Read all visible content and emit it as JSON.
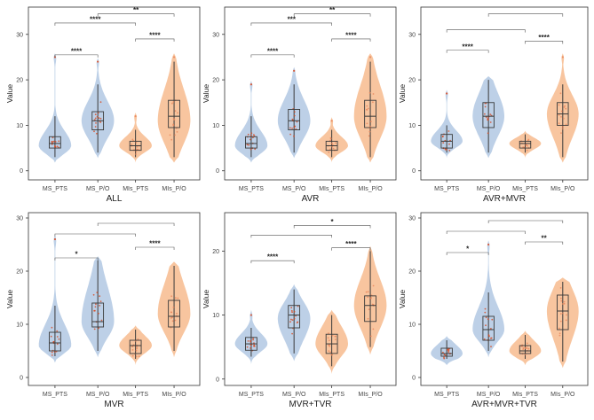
{
  "colors": {
    "blue_violin": "#b9cde6",
    "orange_violin": "#f8c29a",
    "box_stroke": "#3a3a3a",
    "median": "#3a3a3a",
    "red_dots": "#d9481e",
    "orange_dots": "#e8855a",
    "frame": "#333333"
  },
  "chart_data": [
    {
      "type": "violin",
      "title": "ALL",
      "ylabel": "Value",
      "ylim": [
        -2,
        36
      ],
      "yticks": [
        0,
        10,
        20,
        30
      ],
      "categories": [
        "MS_PTS",
        "MS_P/O",
        "MIs_PTS",
        "MIs_P/O"
      ],
      "series": [
        {
          "name": "MS_PTS",
          "min": 3,
          "q1": 5,
          "median": 6,
          "q3": 7.5,
          "max": 12,
          "outlier_max": 25,
          "peak": 5.5
        },
        {
          "name": "MS_P/O",
          "min": 4,
          "q1": 9,
          "median": 11,
          "q3": 13,
          "max": 19,
          "outlier_max": 24,
          "peak": 11
        },
        {
          "name": "MIs_PTS",
          "min": 3,
          "q1": 4.5,
          "median": 5.5,
          "q3": 6.5,
          "max": 9,
          "outlier_max": 12,
          "peak": 5.5
        },
        {
          "name": "MIs_P/O",
          "min": 3,
          "q1": 9.5,
          "median": 12,
          "q3": 15.5,
          "max": 24,
          "outlier_max": 25,
          "peak": 11
        }
      ],
      "significance": [
        {
          "from": 0,
          "to": 1,
          "y": 25.5,
          "label": "****"
        },
        {
          "from": 2,
          "to": 3,
          "y": 29,
          "label": "****"
        },
        {
          "from": 0,
          "to": 2,
          "y": 32.5,
          "label": "****"
        },
        {
          "from": 1,
          "to": 3,
          "y": 34.5,
          "label": "**"
        }
      ]
    },
    {
      "type": "violin",
      "title": "AVR",
      "ylabel": "Value",
      "ylim": [
        -2,
        36
      ],
      "yticks": [
        0,
        10,
        20,
        30
      ],
      "categories": [
        "MS_PTS",
        "MS_P/O",
        "MIs_PTS",
        "MIs_P/O"
      ],
      "series": [
        {
          "name": "MS_PTS",
          "min": 3,
          "q1": 5,
          "median": 6,
          "q3": 7.5,
          "max": 12,
          "outlier_max": 19,
          "peak": 5.5
        },
        {
          "name": "MS_P/O",
          "min": 4,
          "q1": 9,
          "median": 11,
          "q3": 13.5,
          "max": 19,
          "outlier_max": 22,
          "peak": 11
        },
        {
          "name": "MIs_PTS",
          "min": 3,
          "q1": 4.5,
          "median": 5.5,
          "q3": 6.5,
          "max": 9,
          "outlier_max": 11,
          "peak": 5.5
        },
        {
          "name": "MIs_P/O",
          "min": 3,
          "q1": 9.5,
          "median": 12,
          "q3": 15.5,
          "max": 24,
          "outlier_max": 25,
          "peak": 12
        }
      ],
      "significance": [
        {
          "from": 0,
          "to": 1,
          "y": 25.5,
          "label": "****"
        },
        {
          "from": 2,
          "to": 3,
          "y": 29,
          "label": "****"
        },
        {
          "from": 0,
          "to": 2,
          "y": 32.5,
          "label": "***"
        },
        {
          "from": 1,
          "to": 3,
          "y": 34.5,
          "label": "**"
        }
      ]
    },
    {
      "type": "violin",
      "title": "AVR+MVR",
      "ylabel": "Value",
      "ylim": [
        -2,
        36
      ],
      "yticks": [
        0,
        10,
        20,
        30
      ],
      "categories": [
        "MS_PTS",
        "MS_P/O",
        "MIs_PTS",
        "MIs_P/O"
      ],
      "series": [
        {
          "name": "MS_PTS",
          "min": 4,
          "q1": 5,
          "median": 6.5,
          "q3": 8,
          "max": 10,
          "outlier_max": 17,
          "peak": 6.5
        },
        {
          "name": "MS_P/O",
          "min": 4,
          "q1": 9.5,
          "median": 12,
          "q3": 15,
          "max": 20,
          "outlier_max": 20,
          "peak": 12
        },
        {
          "name": "MIs_PTS",
          "min": 4,
          "q1": 5,
          "median": 6,
          "q3": 6.5,
          "max": 8,
          "outlier_max": 8,
          "peak": 6
        },
        {
          "name": "MIs_P/O",
          "min": 3,
          "q1": 10,
          "median": 12.5,
          "q3": 15,
          "max": 19,
          "outlier_max": 25,
          "peak": 12.5
        }
      ],
      "significance": [
        {
          "from": 0,
          "to": 1,
          "y": 26.5,
          "label": "****"
        },
        {
          "from": 2,
          "to": 3,
          "y": 28.5,
          "label": "****"
        },
        {
          "from": 0,
          "to": 2,
          "y": 31,
          "label": ""
        },
        {
          "from": 1,
          "to": 3,
          "y": 34.5,
          "label": ""
        }
      ]
    },
    {
      "type": "violin",
      "title": "MVR",
      "ylabel": "Value",
      "ylim": [
        -1.5,
        31
      ],
      "yticks": [
        0,
        10,
        20,
        30
      ],
      "categories": [
        "MS_PTS",
        "MS_P/O",
        "MIs_PTS",
        "MIs_P/O"
      ],
      "series": [
        {
          "name": "MS_PTS",
          "min": 4,
          "q1": 5,
          "median": 6.5,
          "q3": 8.5,
          "max": 13.5,
          "outlier_max": 26,
          "peak": 6
        },
        {
          "name": "MS_P/O",
          "min": 5,
          "q1": 9.5,
          "median": 10.5,
          "q3": 14,
          "max": 22,
          "outlier_max": 22,
          "peak": 10.5
        },
        {
          "name": "MIs_PTS",
          "min": 3.5,
          "q1": 4.5,
          "median": 6,
          "q3": 7,
          "max": 9,
          "outlier_max": 9,
          "peak": 6
        },
        {
          "name": "MIs_P/O",
          "min": 5,
          "q1": 9.5,
          "median": 11.5,
          "q3": 14.5,
          "max": 21,
          "outlier_max": 21,
          "peak": 12
        }
      ],
      "significance": [
        {
          "from": 0,
          "to": 1,
          "y": 22.5,
          "label": "*"
        },
        {
          "from": 2,
          "to": 3,
          "y": 24.5,
          "label": "****"
        },
        {
          "from": 0,
          "to": 2,
          "y": 27,
          "label": ""
        },
        {
          "from": 1,
          "to": 3,
          "y": 29,
          "label": ""
        }
      ]
    },
    {
      "type": "violin",
      "title": "MVR+TVR",
      "ylabel": "Value",
      "ylim": [
        -1,
        26
      ],
      "yticks": [
        0,
        10,
        20
      ],
      "categories": [
        "MS_PTS",
        "MS_P/O",
        "MIs_PTS",
        "MIs_P/O"
      ],
      "series": [
        {
          "name": "MS_PTS",
          "min": 3.5,
          "q1": 4.5,
          "median": 5.5,
          "q3": 6.5,
          "max": 8,
          "outlier_max": 10,
          "peak": 5.5
        },
        {
          "name": "MS_P/O",
          "min": 4,
          "q1": 8,
          "median": 10,
          "q3": 11.5,
          "max": 14,
          "outlier_max": 14,
          "peak": 9.5
        },
        {
          "name": "MIs_PTS",
          "min": 2,
          "q1": 4,
          "median": 5.5,
          "q3": 7,
          "max": 10,
          "outlier_max": 10,
          "peak": 5.5
        },
        {
          "name": "MIs_P/O",
          "min": 5,
          "q1": 9,
          "median": 11.5,
          "q3": 13,
          "max": 20,
          "outlier_max": 20,
          "peak": 11.5
        }
      ],
      "significance": [
        {
          "from": 0,
          "to": 1,
          "y": 18.5,
          "label": "****"
        },
        {
          "from": 2,
          "to": 3,
          "y": 20.5,
          "label": "****"
        },
        {
          "from": 0,
          "to": 2,
          "y": 22.5,
          "label": ""
        },
        {
          "from": 1,
          "to": 3,
          "y": 24,
          "label": "*"
        }
      ]
    },
    {
      "type": "violin",
      "title": "AVR+MVR+TVR",
      "ylabel": "Value",
      "ylim": [
        -1.5,
        31
      ],
      "yticks": [
        0,
        10,
        20,
        30
      ],
      "categories": [
        "MS_PTS",
        "MS_P/O",
        "MIs_PTS",
        "MIs_P/O"
      ],
      "series": [
        {
          "name": "MS_PTS",
          "min": 3.5,
          "q1": 4,
          "median": 4.5,
          "q3": 5.5,
          "max": 7,
          "outlier_max": 7,
          "peak": 4.5
        },
        {
          "name": "MS_P/O",
          "min": 5,
          "q1": 7,
          "median": 9,
          "q3": 11.5,
          "max": 16,
          "outlier_max": 25,
          "peak": 9
        },
        {
          "name": "MIs_PTS",
          "min": 3.5,
          "q1": 4.5,
          "median": 5,
          "q3": 6,
          "max": 8,
          "outlier_max": 8,
          "peak": 5
        },
        {
          "name": "MIs_P/O",
          "min": 3,
          "q1": 9,
          "median": 12.5,
          "q3": 15.5,
          "max": 18,
          "outlier_max": 18,
          "peak": 12.5
        }
      ],
      "significance": [
        {
          "from": 0,
          "to": 1,
          "y": 23.5,
          "label": "*"
        },
        {
          "from": 2,
          "to": 3,
          "y": 25.5,
          "label": "**"
        },
        {
          "from": 0,
          "to": 2,
          "y": 27.5,
          "label": ""
        },
        {
          "from": 1,
          "to": 3,
          "y": 29.5,
          "label": ""
        }
      ]
    }
  ]
}
